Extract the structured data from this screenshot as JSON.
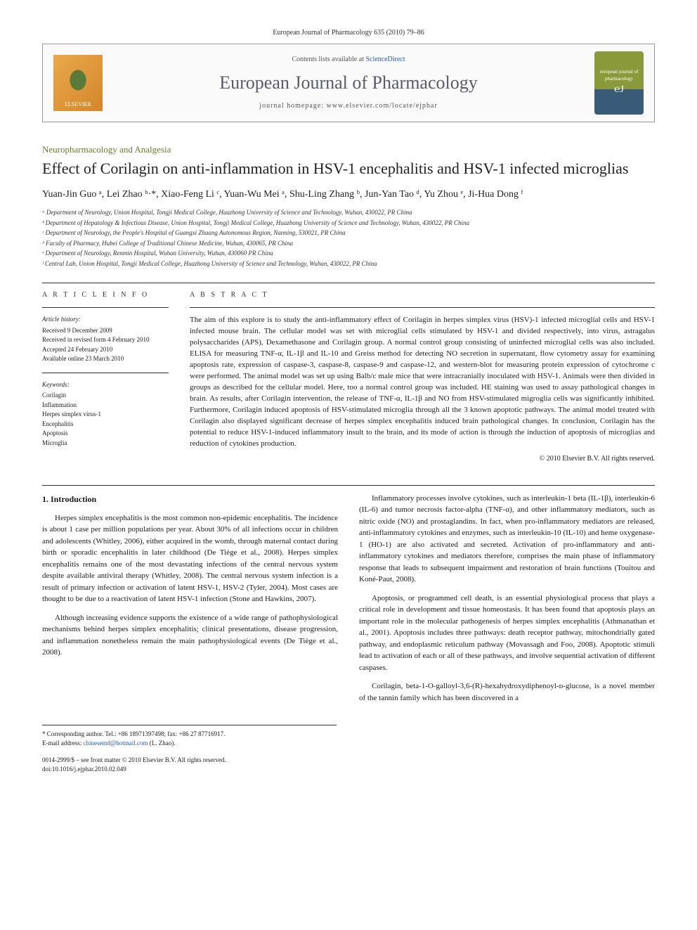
{
  "header": {
    "citation": "European Journal of Pharmacology 635 (2010) 79–86",
    "contents_prefix": "Contents lists available at ",
    "contents_link": "ScienceDirect",
    "journal_name": "European Journal of Pharmacology",
    "homepage_prefix": "journal homepage: ",
    "homepage_url": "www.elsevier.com/locate/ejphar",
    "publisher_logo": "ELSEVIER",
    "cover_logo_top": "european journal of",
    "cover_logo_mid": "pharmacology"
  },
  "article": {
    "section": "Neuropharmacology and Analgesia",
    "title": "Effect of Corilagin on anti-inflammation in HSV-1 encephalitis and HSV-1 infected microglias",
    "authors_html": "Yuan-Jin Guo ᵃ, Lei Zhao ᵇ·*, Xiao-Feng Li ᶜ, Yuan-Wu Mei ᵃ, Shu-Ling Zhang ᵇ, Jun-Yan Tao ᵈ, Yu Zhou ᵉ, Ji-Hua Dong ᶠ",
    "affiliations": [
      "ᵃ Department of Neurology, Union Hospital, Tongji Medical College, Huazhong University of Science and Technology, Wuhan, 430022, PR China",
      "ᵇ Department of Hepatology & Infectious Disease, Union Hospital, Tongji Medical College, Huazhong University of Science and Technology, Wuhan, 430022, PR China",
      "ᶜ Department of Neurology, the People's Hospital of Guangxi Zhuang Autonomous Region, Nanning, 530021, PR China",
      "ᵈ Faculty of Pharmacy, Hubei College of Traditional Chinese Medicine, Wuhan, 430065, PR China",
      "ᵉ Department of Neurology, Renmin Hospital, Wuhan University, Wuhan, 430060 PR China",
      "ᶠ Central Lab, Union Hospital, Tongji Medical College, Huazhong University of Science and Technology, Wuhan, 430022, PR China"
    ]
  },
  "info": {
    "heading": "A R T I C L E   I N F O",
    "history_label": "Article history:",
    "history": [
      "Received 9 December 2009",
      "Received in revised form 4 February 2010",
      "Accepted 24 February 2010",
      "Available online 23 March 2010"
    ],
    "keywords_label": "Keywords:",
    "keywords": [
      "Corilagin",
      "Inflammation",
      "Herpes simplex virus-1",
      "Encephalitis",
      "Apoptosis",
      "Microglia"
    ]
  },
  "abstract": {
    "heading": "A B S T R A C T",
    "text": "The aim of this explore is to study the anti-inflammatory effect of Corilagin in herpes simplex virus (HSV)-1 infected microglial cells and HSV-1 infected mouse brain. The cellular model was set with microglial cells stimulated by HSV-1 and divided respectively, into virus, astragalus polysaccharides (APS), Dexamethasone and Corilagin group. A normal control group consisting of uninfected microglial cells was also included. ELISA for measuring TNF-α, IL-1β and IL-10 and Greiss method for detecting NO secretion in supernatant, flow cytometry assay for examining apoptosis rate, expression of caspase-3, caspase-8, caspase-9 and caspase-12, and western-blot for measuring protein expression of cytochrome c were performed. The animal model was set up using Balb/c male mice that were intracranially inoculated with HSV-1. Animals were then divided in groups as described for the cellular model. Here, too a normal control group was included. HE staining was used to assay pathological changes in brain. As results, after Corilagin intervention, the release of TNF-α, IL-1β and NO from HSV-stimulated migroglia cells was significantly inhibited. Furthermore, Corilagin induced apoptosis of HSV-stimulated microglia through all the 3 known apoptotic pathways. The animal model treated with Corilagin also displayed significant decrease of herpes simplex encephalitis induced brain pathological changes. In conclusion, Corilagin has the potential to reduce HSV-1-induced inflammatory insult to the brain, and its mode of action is through the induction of apoptosis of microglias and reduction of cytokines production.",
    "copyright": "© 2010 Elsevier B.V. All rights reserved."
  },
  "body": {
    "intro_heading": "1. Introduction",
    "left_paragraphs": [
      "Herpes simplex encephalitis is the most common non-epidemic encephalitis. The incidence is about 1 case per million populations per year. About 30% of all infections occur in children and adolescents (Whitley, 2006), either acquired in the womb, through maternal contact during birth or sporadic encephalitis in later childhood (De Tiège et al., 2008). Herpes simplex encephalitis remains one of the most devastating infections of the central nervous system despite available antiviral therapy (Whitley, 2008). The central nervous system infection is a result of primary infection or activation of latent HSV-1, HSV-2 (Tyler, 2004). Most cases are thought to be due to a reactivation of latent HSV-1 infection (Stone and Hawkins, 2007).",
      "Although increasing evidence supports the existence of a wide range of pathophysiological mechanisms behind herpes simplex encephalitis; clinical presentations, disease progression, and inflammation nonetheless remain the main pathophysiological events (De Tiège et al., 2008)."
    ],
    "right_paragraphs": [
      "Inflammatory processes involve cytokines, such as interleukin-1 beta (IL-1β), interleukin-6 (IL-6) and tumor necrosis factor-alpha (TNF-α), and other inflammatory mediators, such as nitric oxide (NO) and prostaglandins. In fact, when pro-inflammatory mediators are released, anti-inflammatory cytokines and enzymes, such as interleukin-10 (IL-10) and heme oxygenase-1 (HO-1) are also activated and secreted. Activation of pro-inflammatory and anti-inflammatory cytokines and mediators therefore, comprises the main phase of inflammatory response that leads to subsequent impairment and restoration of brain functions (Touitou and Koné-Paut, 2008).",
      "Apoptosis, or programmed cell death, is an essential physiological process that plays a critical role in development and tissue homeostasis. It has been found that apoptosis plays an important role in the molecular pathogenesis of herpes simplex encephalitis (Athmanathan et al., 2001). Apoptosis includes three pathways: death receptor pathway, mitochondrially gated pathway, and endoplasmic reticulum pathway (Movassagh and Foo, 2008). Apoptotic stimuli lead to activation of each or all of these pathways, and involve sequential activation of different caspases.",
      "Corilagin, beta-1-O-galloyl-3,6-(R)-hexahydroxydiphenoyl-ᴅ-glucose, is a novel member of the tannin family which has been discovered in a"
    ]
  },
  "footer": {
    "corresponding": "* Corresponding author. Tel.: +86 18971397498; fax: +86 27 87716917.",
    "email_label": "E-mail address: ",
    "email": "chinesemd@hotmail.com",
    "email_name": " (L. Zhao).",
    "copyright_line": "0014-2999/$ – see front matter © 2010 Elsevier B.V. All rights reserved.",
    "doi": "doi:10.1016/j.ejphar.2010.02.049"
  },
  "colors": {
    "section_green": "#6a7a30",
    "link_blue": "#2a5caa",
    "journal_gray": "#5a5a6a"
  }
}
